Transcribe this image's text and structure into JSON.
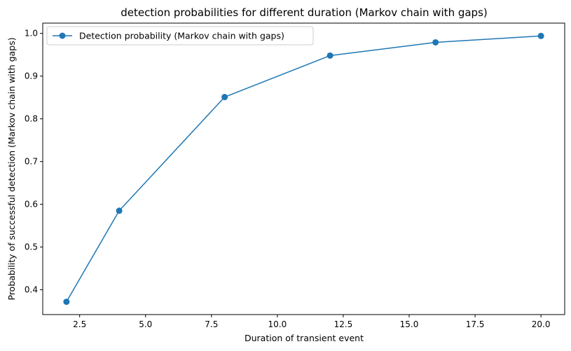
{
  "chart_data": {
    "type": "line",
    "title": "detection probabilities for different duration (Markov chain with gaps)",
    "xlabel": "Duration of transient event",
    "ylabel": "Probability of successful detection (Markov chain with gaps)",
    "xlim": [
      1.1,
      20.9
    ],
    "ylim": [
      0.342,
      1.024
    ],
    "xticks": [
      2.5,
      5.0,
      7.5,
      10.0,
      12.5,
      15.0,
      17.5,
      20.0
    ],
    "xtick_labels": [
      "2.5",
      "5.0",
      "7.5",
      "10.0",
      "12.5",
      "15.0",
      "17.5",
      "20.0"
    ],
    "yticks": [
      0.4,
      0.5,
      0.6,
      0.7,
      0.8,
      0.9,
      1.0
    ],
    "ytick_labels": [
      "0.4",
      "0.5",
      "0.6",
      "0.7",
      "0.8",
      "0.9",
      "1.0"
    ],
    "grid": false,
    "legend_position": "top-left",
    "series": [
      {
        "name": "Detection probability (Markov chain with gaps)",
        "color": "#1f77b4",
        "marker": "circle",
        "x": [
          2,
          4,
          8,
          12,
          16,
          20
        ],
        "y": [
          0.372,
          0.585,
          0.851,
          0.948,
          0.979,
          0.994
        ]
      }
    ]
  }
}
